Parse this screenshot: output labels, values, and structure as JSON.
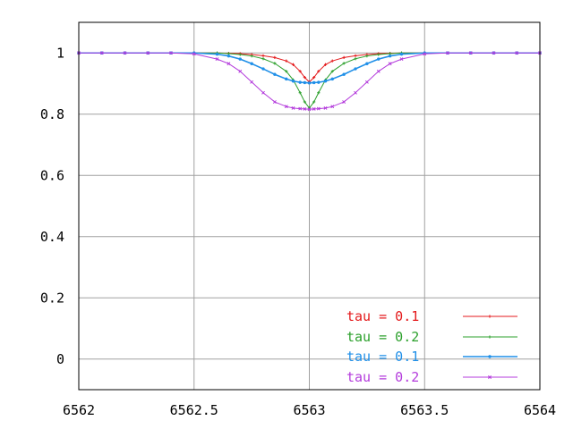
{
  "chart_data": {
    "type": "line",
    "title": "",
    "xlabel": "",
    "ylabel": "",
    "xlim": [
      6562,
      6564
    ],
    "ylim": [
      -0.1,
      1.1
    ],
    "grid": true,
    "legend_position": "bottom-right",
    "x_ticks": [
      6562,
      6562.5,
      6563,
      6563.5,
      6564
    ],
    "x_tick_labels": [
      "6562",
      "6562.5",
      "6563",
      "6563.5",
      "6564"
    ],
    "y_ticks": [
      0,
      0.2,
      0.4,
      0.6,
      0.8,
      1
    ],
    "y_tick_labels": [
      "0",
      "0.2",
      "0.4",
      "0.6",
      "0.8",
      "1"
    ],
    "x": [
      6562.0,
      6562.1,
      6562.2,
      6562.3,
      6562.4,
      6562.5,
      6562.6,
      6562.65,
      6562.7,
      6562.75,
      6562.8,
      6562.85,
      6562.9,
      6562.93,
      6562.96,
      6562.98,
      6563.0,
      6563.02,
      6563.04,
      6563.07,
      6563.1,
      6563.15,
      6563.2,
      6563.25,
      6563.3,
      6563.35,
      6563.4,
      6563.5,
      6563.6,
      6563.7,
      6563.8,
      6563.9,
      6564.0
    ],
    "series": [
      {
        "name": "tau = 0.1",
        "color": "#e41a1c",
        "marker": "plus",
        "values": [
          1.0,
          1.0,
          1.0,
          1.0,
          1.0,
          1.0,
          1.0,
          0.999,
          0.998,
          0.995,
          0.991,
          0.985,
          0.974,
          0.962,
          0.94,
          0.92,
          0.905,
          0.92,
          0.94,
          0.962,
          0.974,
          0.985,
          0.991,
          0.995,
          0.998,
          0.999,
          1.0,
          1.0,
          1.0,
          1.0,
          1.0,
          1.0,
          1.0
        ]
      },
      {
        "name": "tau = 0.2",
        "color": "#2ca02c",
        "marker": "plus",
        "values": [
          1.0,
          1.0,
          1.0,
          1.0,
          1.0,
          1.0,
          1.0,
          0.998,
          0.995,
          0.99,
          0.981,
          0.966,
          0.94,
          0.912,
          0.87,
          0.84,
          0.82,
          0.84,
          0.87,
          0.912,
          0.94,
          0.966,
          0.981,
          0.99,
          0.995,
          0.998,
          1.0,
          1.0,
          1.0,
          1.0,
          1.0,
          1.0,
          1.0
        ]
      },
      {
        "name": "tau = 0.1",
        "color": "#1f8fe8",
        "marker": "dot",
        "values": [
          1.0,
          1.0,
          1.0,
          1.0,
          1.0,
          1.0,
          0.996,
          0.99,
          0.98,
          0.965,
          0.948,
          0.93,
          0.915,
          0.908,
          0.904,
          0.903,
          0.902,
          0.903,
          0.904,
          0.908,
          0.915,
          0.93,
          0.948,
          0.965,
          0.98,
          0.99,
          0.996,
          1.0,
          1.0,
          1.0,
          1.0,
          1.0,
          1.0
        ]
      },
      {
        "name": "tau = 0.2",
        "color": "#b43cdc",
        "marker": "cross",
        "values": [
          1.0,
          1.0,
          1.0,
          1.0,
          1.0,
          0.997,
          0.98,
          0.965,
          0.94,
          0.905,
          0.87,
          0.84,
          0.825,
          0.82,
          0.818,
          0.817,
          0.816,
          0.817,
          0.818,
          0.82,
          0.825,
          0.84,
          0.87,
          0.905,
          0.94,
          0.965,
          0.98,
          0.997,
          1.0,
          1.0,
          1.0,
          1.0,
          1.0
        ]
      }
    ]
  }
}
